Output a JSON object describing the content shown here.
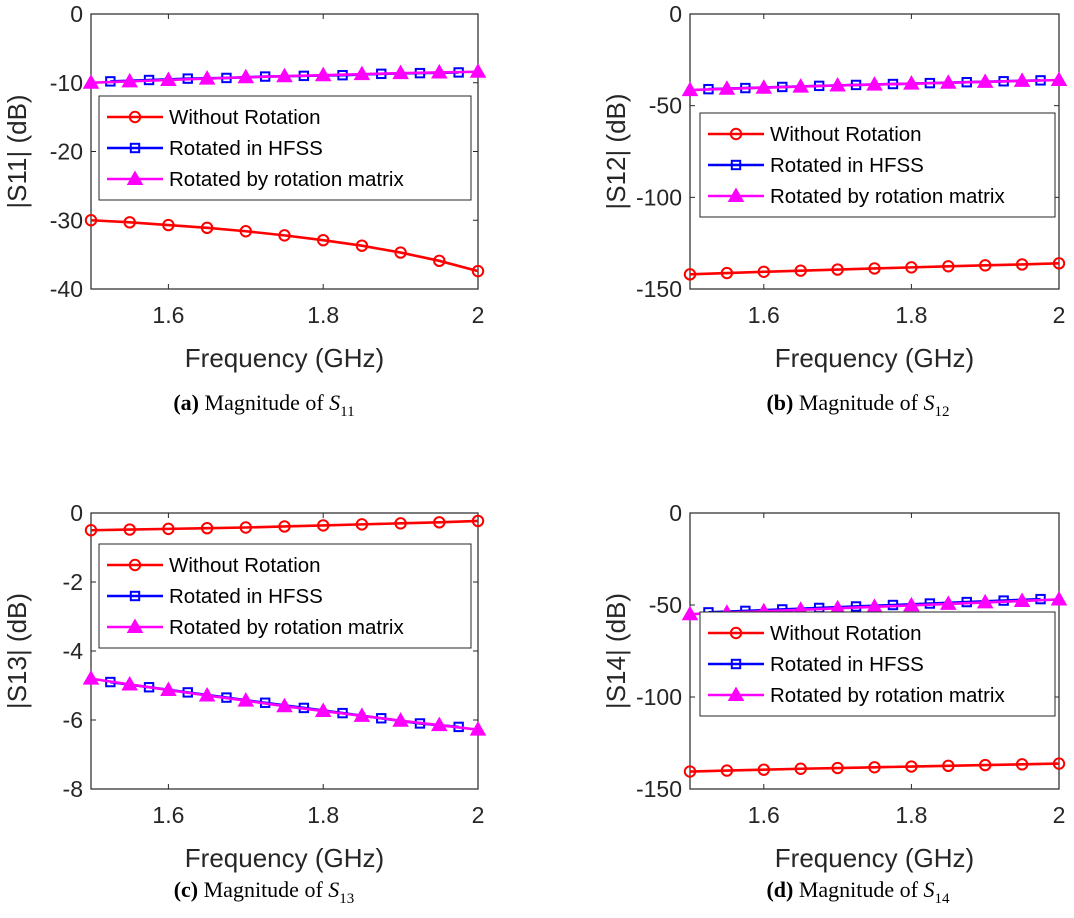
{
  "chart_data": [
    {
      "type": "line",
      "panel": "a",
      "caption": {
        "label": "(a)",
        "text": "Magnitude of",
        "math": "S",
        "sub": "11"
      },
      "xlabel": "Frequency (GHz)",
      "ylabel": "|S11| (dB)",
      "xlim": [
        1.5,
        2.0
      ],
      "ylim": [
        -40,
        0
      ],
      "xticks": [
        "1.6",
        "1.8",
        "2"
      ],
      "yticks": [
        "0",
        "-10",
        "-20",
        "-30",
        "-40"
      ],
      "legend": "upper",
      "x": [
        1.5,
        1.55,
        1.6,
        1.65,
        1.7,
        1.75,
        1.8,
        1.85,
        1.9,
        1.95,
        2.0
      ],
      "series": [
        {
          "name": "Without Rotation",
          "color": "#ff0000",
          "marker": "circle",
          "x": [
            1.5,
            1.55,
            1.6,
            1.65,
            1.7,
            1.75,
            1.8,
            1.85,
            1.9,
            1.95,
            2.0
          ],
          "values": [
            -30.0,
            -30.3,
            -30.7,
            -31.1,
            -31.6,
            -32.2,
            -32.9,
            -33.7,
            -34.7,
            -35.9,
            -37.4
          ]
        },
        {
          "name": "Rotated in HFSS",
          "color": "#0000ff",
          "marker": "square",
          "x": [
            1.525,
            1.575,
            1.625,
            1.675,
            1.725,
            1.775,
            1.825,
            1.875,
            1.925,
            1.975
          ],
          "values": [
            -9.8,
            -9.6,
            -9.4,
            -9.3,
            -9.1,
            -9.0,
            -8.9,
            -8.7,
            -8.6,
            -8.5
          ]
        },
        {
          "name": "Rotated by rotation matrix",
          "color": "#ff00ff",
          "marker": "triangle",
          "x": [
            1.5,
            1.55,
            1.6,
            1.65,
            1.7,
            1.75,
            1.8,
            1.85,
            1.9,
            1.95,
            2.0
          ],
          "values": [
            -10.0,
            -9.8,
            -9.6,
            -9.4,
            -9.2,
            -9.05,
            -8.9,
            -8.75,
            -8.6,
            -8.5,
            -8.4
          ]
        }
      ]
    },
    {
      "type": "line",
      "panel": "b",
      "caption": {
        "label": "(b)",
        "text": "Magnitude of",
        "math": "S",
        "sub": "12"
      },
      "xlabel": "Frequency (GHz)",
      "ylabel": "|S12| (dB)",
      "xlim": [
        1.5,
        2.0
      ],
      "ylim": [
        -150,
        0
      ],
      "xticks": [
        "1.6",
        "1.8",
        "2"
      ],
      "yticks": [
        "0",
        "-50",
        "-100",
        "-150"
      ],
      "legend": "middle",
      "series": [
        {
          "name": "Without Rotation",
          "color": "#ff0000",
          "marker": "circle",
          "x": [
            1.5,
            1.55,
            1.6,
            1.65,
            1.7,
            1.75,
            1.8,
            1.85,
            1.9,
            1.95,
            2.0
          ],
          "values": [
            -142.0,
            -141.3,
            -140.6,
            -140.0,
            -139.4,
            -138.8,
            -138.2,
            -137.6,
            -137.1,
            -136.6,
            -136.0
          ]
        },
        {
          "name": "Rotated in HFSS",
          "color": "#0000ff",
          "marker": "square",
          "x": [
            1.525,
            1.575,
            1.625,
            1.675,
            1.725,
            1.775,
            1.825,
            1.875,
            1.925,
            1.975
          ],
          "values": [
            -41.0,
            -40.4,
            -39.8,
            -39.2,
            -38.7,
            -38.2,
            -37.7,
            -37.2,
            -36.7,
            -36.2
          ]
        },
        {
          "name": "Rotated by rotation matrix",
          "color": "#ff00ff",
          "marker": "triangle",
          "x": [
            1.5,
            1.55,
            1.6,
            1.65,
            1.7,
            1.75,
            1.8,
            1.85,
            1.9,
            1.95,
            2.0
          ],
          "values": [
            -41.5,
            -40.8,
            -40.2,
            -39.6,
            -39.0,
            -38.5,
            -38.0,
            -37.5,
            -37.0,
            -36.5,
            -36.0
          ]
        }
      ]
    },
    {
      "type": "line",
      "panel": "c",
      "caption": {
        "label": "(c)",
        "text": "Magnitude of",
        "math": "S",
        "sub": "13"
      },
      "xlabel": "Frequency (GHz)",
      "ylabel": "|S13| (dB)",
      "xlim": [
        1.5,
        2.0
      ],
      "ylim": [
        -8,
        0
      ],
      "xticks": [
        "1.6",
        "1.8",
        "2"
      ],
      "yticks": [
        "0",
        "-2",
        "-4",
        "-6",
        "-8"
      ],
      "legend": "upper",
      "series": [
        {
          "name": "Without Rotation",
          "color": "#ff0000",
          "marker": "circle",
          "x": [
            1.5,
            1.55,
            1.6,
            1.65,
            1.7,
            1.75,
            1.8,
            1.85,
            1.9,
            1.95,
            2.0
          ],
          "values": [
            -0.5,
            -0.48,
            -0.46,
            -0.44,
            -0.42,
            -0.39,
            -0.36,
            -0.33,
            -0.3,
            -0.27,
            -0.23
          ]
        },
        {
          "name": "Rotated in HFSS",
          "color": "#0000ff",
          "marker": "square",
          "x": [
            1.525,
            1.575,
            1.625,
            1.675,
            1.725,
            1.775,
            1.825,
            1.875,
            1.925,
            1.975
          ],
          "values": [
            -4.9,
            -5.05,
            -5.2,
            -5.35,
            -5.5,
            -5.65,
            -5.8,
            -5.95,
            -6.1,
            -6.2
          ]
        },
        {
          "name": "Rotated by rotation matrix",
          "color": "#ff00ff",
          "marker": "triangle",
          "x": [
            1.5,
            1.55,
            1.6,
            1.65,
            1.7,
            1.75,
            1.8,
            1.85,
            1.9,
            1.95,
            2.0
          ],
          "values": [
            -4.8,
            -4.97,
            -5.13,
            -5.29,
            -5.44,
            -5.6,
            -5.74,
            -5.88,
            -6.02,
            -6.15,
            -6.28
          ]
        }
      ]
    },
    {
      "type": "line",
      "panel": "d",
      "caption": {
        "label": "(d)",
        "text": "Magnitude of",
        "math": "S",
        "sub": "14"
      },
      "xlabel": "Frequency (GHz)",
      "ylabel": "|S14| (dB)",
      "xlim": [
        1.5,
        2.0
      ],
      "ylim": [
        -150,
        0
      ],
      "xticks": [
        "1.6",
        "1.8",
        "2"
      ],
      "yticks": [
        "0",
        "-50",
        "-100",
        "-150"
      ],
      "legend": "middle",
      "series": [
        {
          "name": "Without Rotation",
          "color": "#ff0000",
          "marker": "circle",
          "x": [
            1.5,
            1.55,
            1.6,
            1.65,
            1.7,
            1.75,
            1.8,
            1.85,
            1.9,
            1.95,
            2.0
          ],
          "values": [
            -140.5,
            -140.0,
            -139.5,
            -139.0,
            -138.6,
            -138.2,
            -137.8,
            -137.4,
            -137.0,
            -136.6,
            -136.2
          ]
        },
        {
          "name": "Rotated in HFSS",
          "color": "#0000ff",
          "marker": "square",
          "x": [
            1.525,
            1.575,
            1.625,
            1.675,
            1.725,
            1.775,
            1.825,
            1.875,
            1.925,
            1.975
          ],
          "values": [
            -54.0,
            -53.2,
            -52.4,
            -51.6,
            -50.8,
            -50.0,
            -49.2,
            -48.4,
            -47.6,
            -46.8
          ]
        },
        {
          "name": "Rotated by rotation matrix",
          "color": "#ff00ff",
          "marker": "triangle",
          "x": [
            1.5,
            1.55,
            1.6,
            1.65,
            1.7,
            1.75,
            1.8,
            1.85,
            1.9,
            1.95,
            2.0
          ],
          "values": [
            -55.0,
            -54.2,
            -53.4,
            -52.6,
            -51.8,
            -51.0,
            -50.2,
            -49.4,
            -48.6,
            -47.8,
            -47.0
          ]
        }
      ]
    }
  ]
}
